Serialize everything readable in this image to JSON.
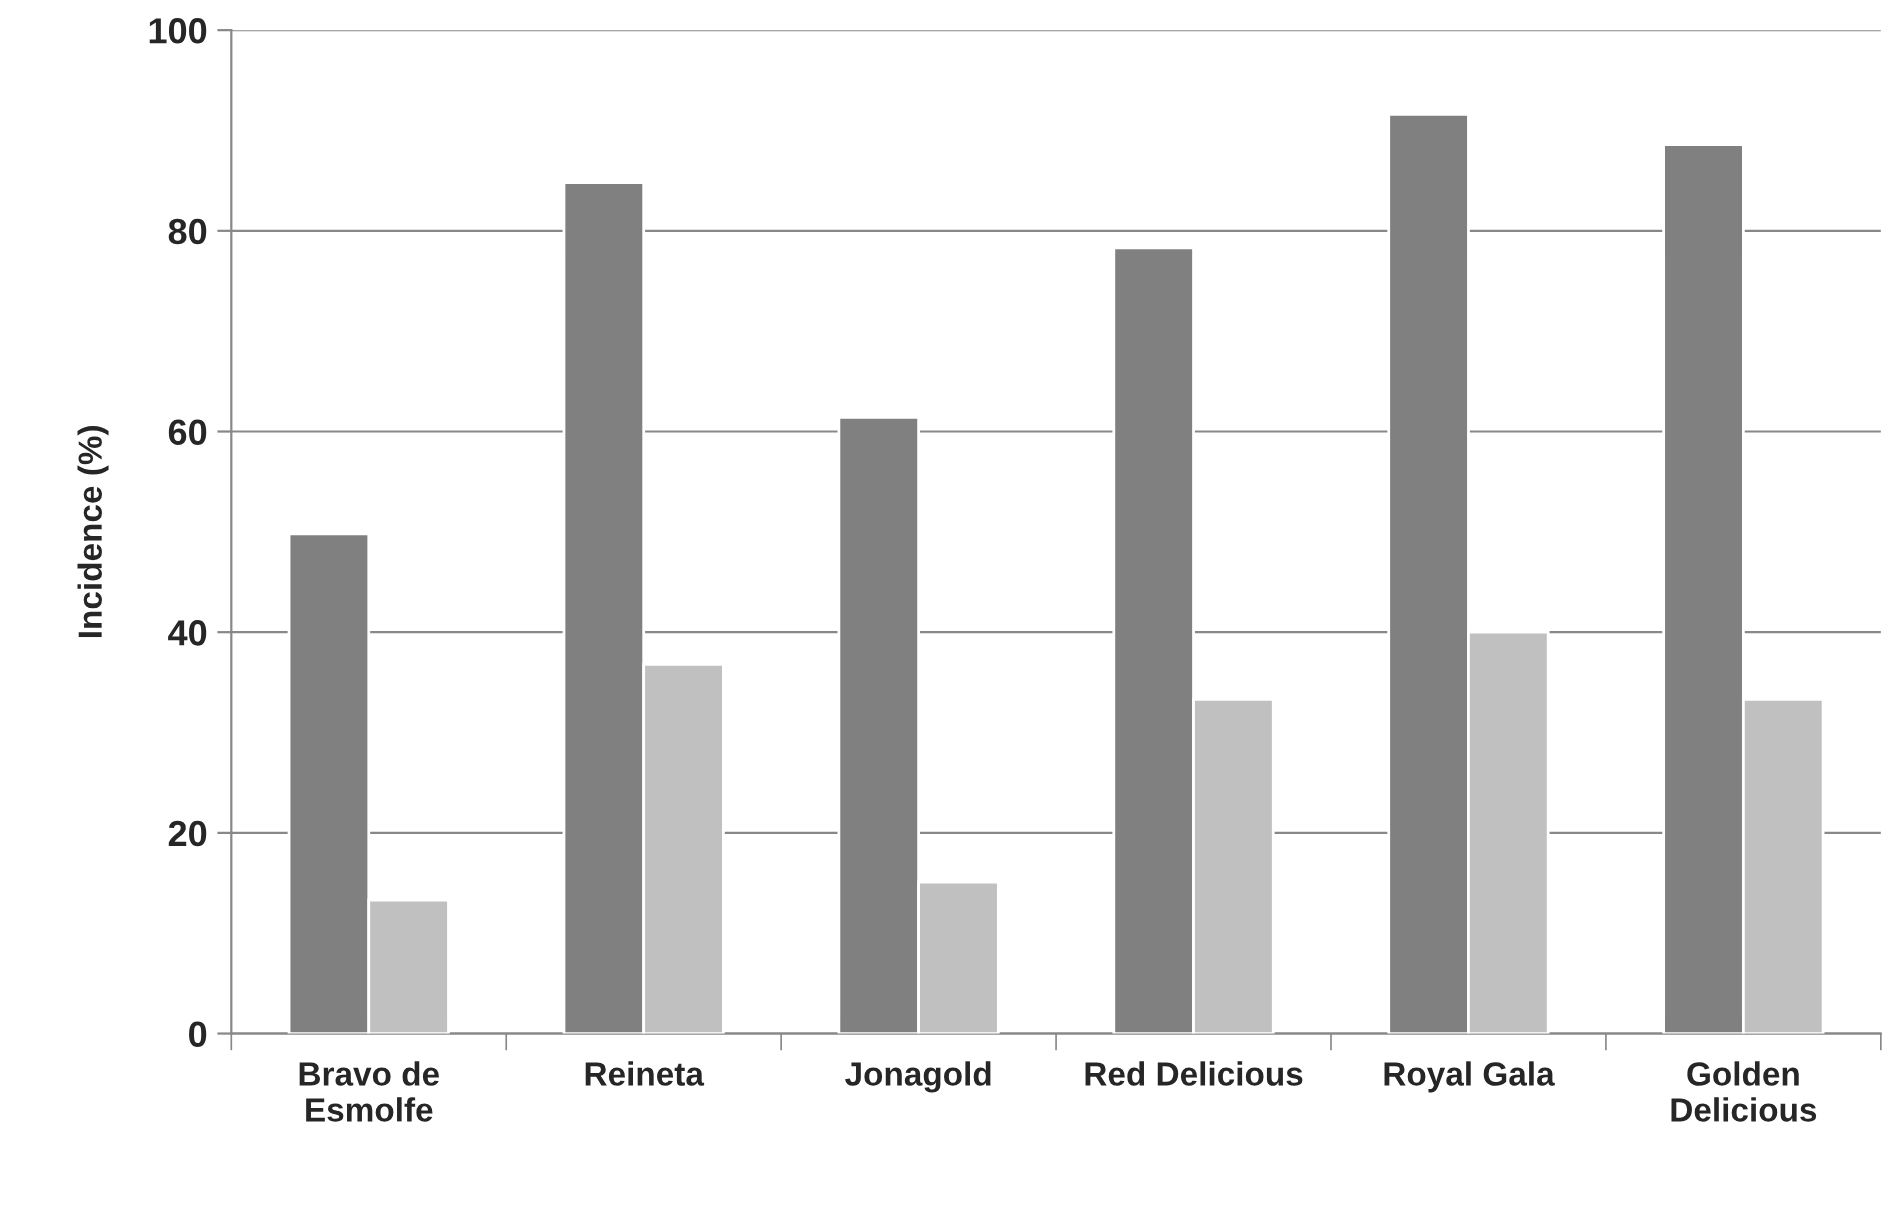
{
  "chart_data": {
    "type": "bar",
    "categories": [
      "Bravo de\nEsmolfe",
      "Reineta",
      "Jonagold",
      "Red Delicious",
      "Royal Gala",
      "Golden\nDelicious"
    ],
    "series": [
      {
        "color": "#808080",
        "values": [
          49.8,
          84.8,
          61.4,
          78.3,
          91.6,
          88.6
        ]
      },
      {
        "color": "#c0c0c0",
        "values": [
          13.3,
          36.8,
          15.1,
          33.3,
          40.0,
          33.3
        ]
      }
    ],
    "ylabel": "Incidence (%)",
    "ylim": [
      0,
      100
    ],
    "yticks": [
      0,
      20,
      40,
      60,
      80,
      100
    ],
    "grid": "y"
  }
}
